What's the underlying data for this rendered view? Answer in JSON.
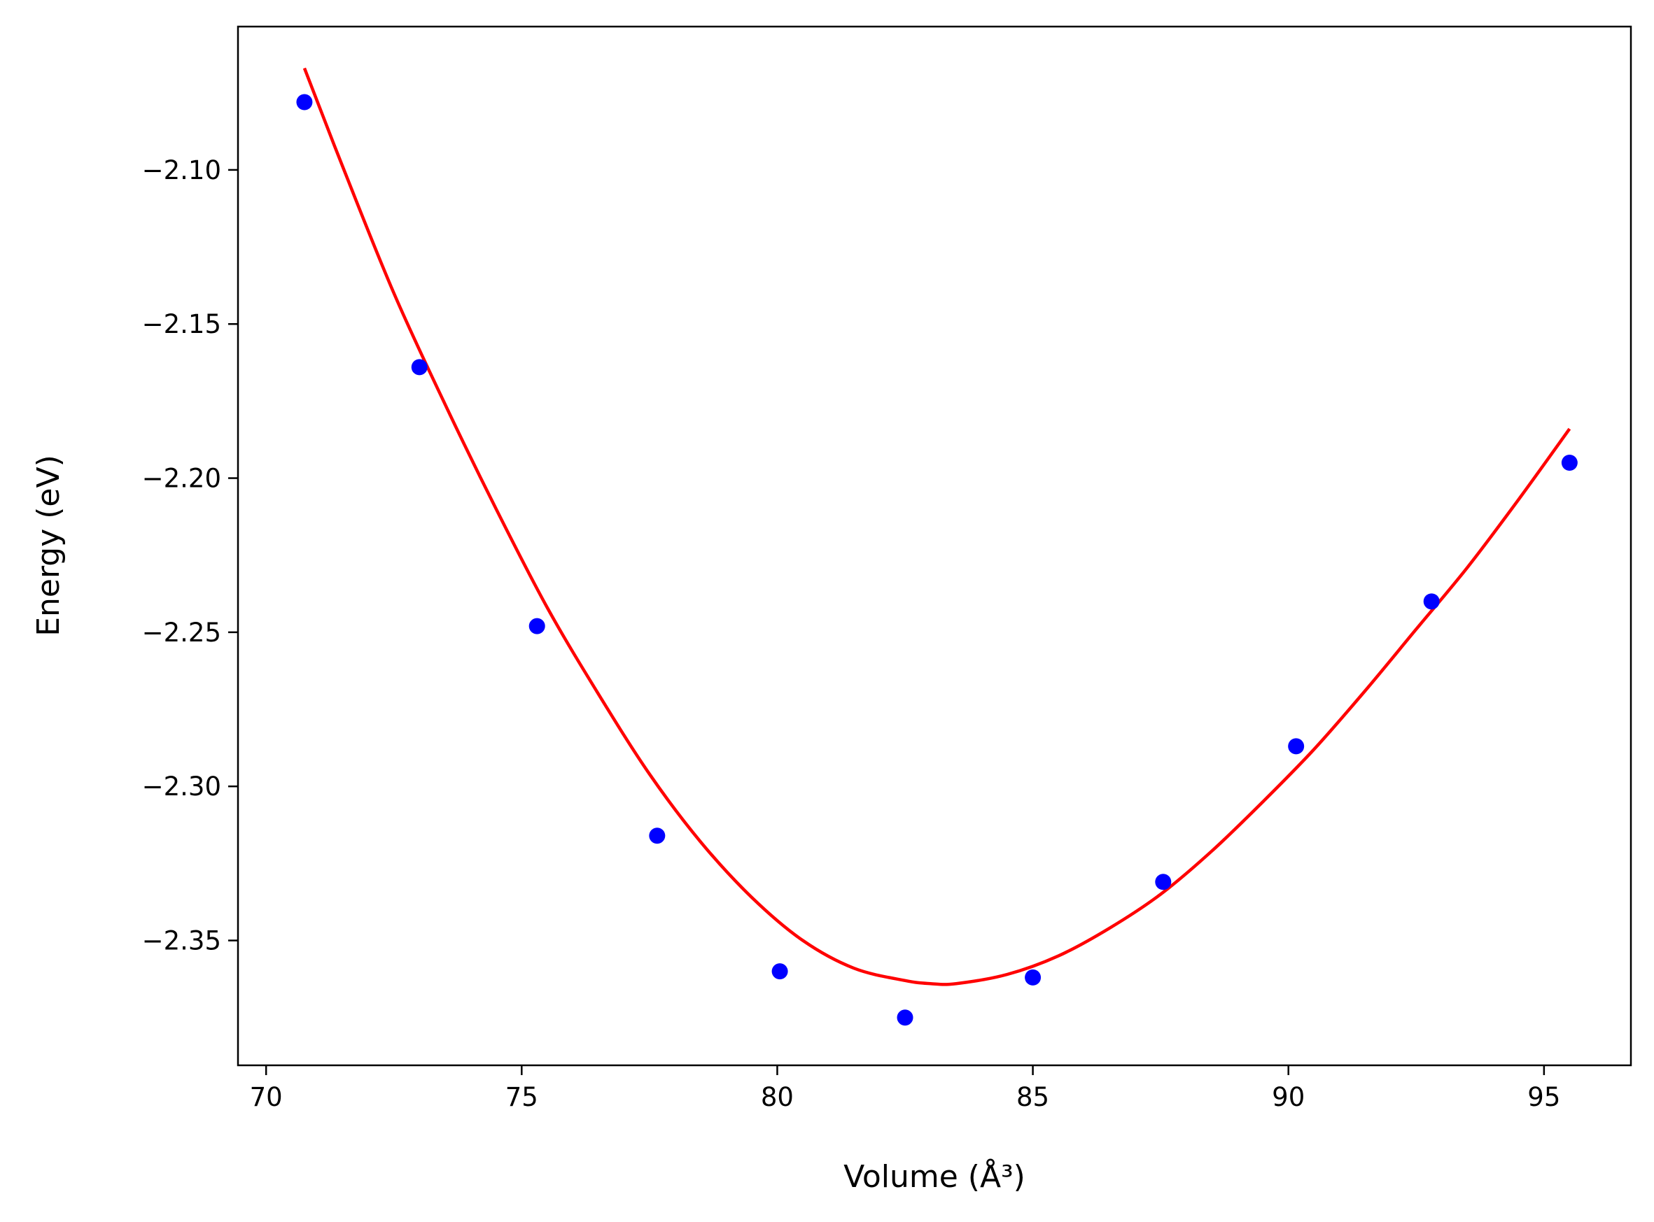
{
  "chart_data": {
    "type": "scatter",
    "title": "",
    "xlabel": "Volume (Å³)",
    "ylabel": "Energy (eV)",
    "xlim": [
      69.45,
      96.7
    ],
    "ylim": [
      -2.3905,
      -2.0535
    ],
    "xticks": [
      70,
      75,
      80,
      85,
      90,
      95
    ],
    "xtick_labels": [
      "70",
      "75",
      "80",
      "85",
      "90",
      "95"
    ],
    "yticks": [
      -2.1,
      -2.15,
      -2.2,
      -2.25,
      -2.3,
      -2.35
    ],
    "ytick_labels": [
      "−2.10",
      "−2.15",
      "−2.20",
      "−2.25",
      "−2.30",
      "−2.35"
    ],
    "grid": false,
    "legend": "none",
    "series": [
      {
        "kind": "points",
        "color": "#0000ff",
        "x": [
          70.75,
          73.0,
          75.3,
          77.65,
          80.05,
          82.5,
          85.0,
          87.55,
          90.15,
          92.8,
          95.5
        ],
        "y": [
          -2.078,
          -2.164,
          -2.248,
          -2.316,
          -2.36,
          -2.375,
          -2.362,
          -2.331,
          -2.287,
          -2.24,
          -2.195
        ]
      },
      {
        "kind": "fit-curve",
        "color": "#ff0000",
        "x": [
          70.75,
          71.5,
          72.5,
          73.5,
          74.5,
          75.5,
          76.5,
          77.5,
          78.5,
          79.5,
          80.5,
          81.5,
          82.5,
          83.0,
          83.5,
          84.5,
          85.5,
          86.5,
          87.5,
          88.5,
          89.5,
          90.5,
          91.5,
          92.5,
          93.5,
          94.5,
          95.5
        ],
        "y": [
          -2.067,
          -2.099,
          -2.14,
          -2.176,
          -2.21,
          -2.242,
          -2.27,
          -2.296,
          -2.318,
          -2.336,
          -2.35,
          -2.359,
          -2.363,
          -2.364,
          -2.364,
          -2.361,
          -2.355,
          -2.346,
          -2.335,
          -2.321,
          -2.305,
          -2.288,
          -2.269,
          -2.249,
          -2.229,
          -2.207,
          -2.184
        ]
      }
    ]
  }
}
